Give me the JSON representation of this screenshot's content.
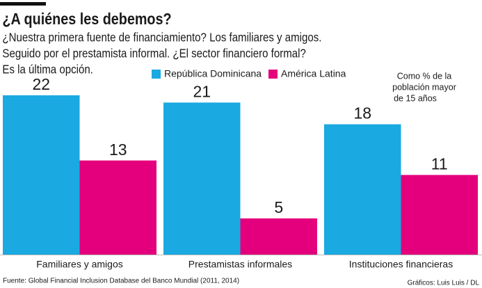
{
  "chart_data": {
    "type": "bar",
    "title": "¿A quiénes les debemos?",
    "subtitle": [
      "¿Nuestra primera fuente de financiamiento? Los familiares y amigos.",
      "Seguido por el prestamista informal. ¿El sector financiero formal?",
      "Es la última opción."
    ],
    "note": [
      "Como % de la",
      "población mayor",
      "de 15 años"
    ],
    "categories": [
      "Familiares y amigos",
      "Prestamistas informales",
      "Instituciones financieras"
    ],
    "series": [
      {
        "name": "República Dominicana",
        "color": "#1aa9e1",
        "values": [
          22,
          21,
          18
        ]
      },
      {
        "name": "América Latina",
        "color": "#e4007d",
        "values": [
          13,
          5,
          11
        ]
      }
    ],
    "source": "Fuente: Global Financial Inclusion Database  del Banco Mundial (2011, 2014)",
    "credit": "Gráficos: Luis Luis / DL"
  }
}
